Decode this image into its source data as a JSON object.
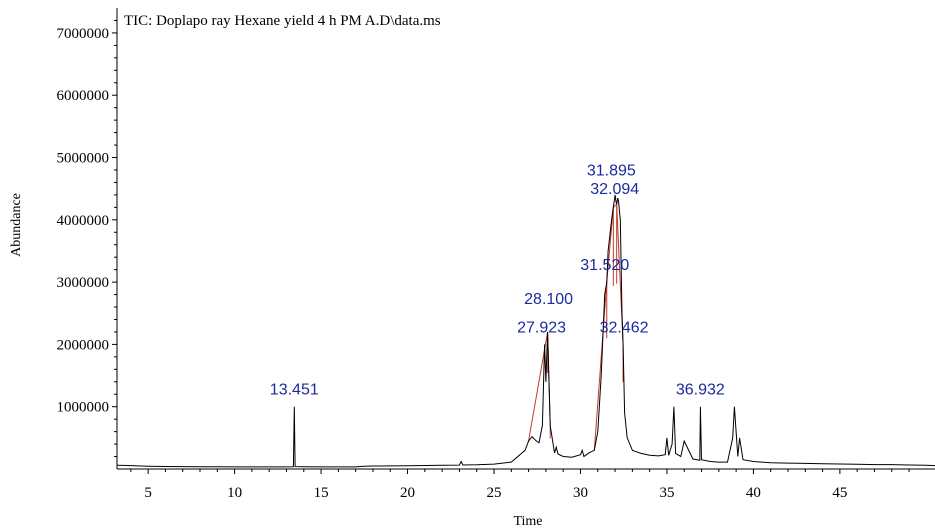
{
  "chart_data": {
    "type": "line",
    "title": "TIC: Doplapo ray Hexane yield 4 h PM A.D\\data.ms",
    "xlabel": "Time",
    "ylabel": "Abundance",
    "xlim": [
      3.2,
      50.5
    ],
    "ylim": [
      0,
      7400000
    ],
    "x_ticks": [
      5,
      10,
      15,
      20,
      25,
      30,
      35,
      40,
      45
    ],
    "x_tick_labels": [
      "5",
      "10",
      "15",
      "20",
      "25",
      "30",
      "35",
      "40",
      "45"
    ],
    "y_ticks": [
      1000000,
      2000000,
      3000000,
      4000000,
      5000000,
      6000000,
      7000000
    ],
    "y_tick_labels": [
      "1000000",
      "2000000",
      "3000000",
      "4000000",
      "5000000",
      "6000000",
      "7000000"
    ],
    "grid": false,
    "legend": "none",
    "line_color": "#000000",
    "label_color": "#1c2aa0",
    "integration_color": "#c0392b",
    "series": [
      {
        "x": [
          3.2,
          4.0,
          5.0,
          6.0,
          7.0,
          8.0,
          9.0,
          10.0,
          11.0,
          12.0,
          13.0,
          13.4,
          13.451,
          13.5,
          14.0,
          15.0,
          16.0,
          17.0,
          17.5,
          18.0,
          19.0,
          20.0,
          21.0,
          22.0,
          23.0,
          23.1,
          23.2,
          24.0,
          25.0,
          26.0,
          26.8,
          27.0,
          27.2,
          27.4,
          27.6,
          27.8,
          27.923,
          28.0,
          28.1,
          28.25,
          28.5,
          28.6,
          28.7,
          29.0,
          29.5,
          30.0,
          30.1,
          30.2,
          30.5,
          30.8,
          31.0,
          31.2,
          31.4,
          31.52,
          31.6,
          31.8,
          31.9,
          32.0,
          32.05,
          32.094,
          32.15,
          32.2,
          32.3,
          32.4,
          32.462,
          32.55,
          32.7,
          33.0,
          33.5,
          34.0,
          34.5,
          34.9,
          35.0,
          35.1,
          35.3,
          35.4,
          35.5,
          35.8,
          36.0,
          36.5,
          36.9,
          36.932,
          37.0,
          37.5,
          38.0,
          38.5,
          38.8,
          38.9,
          39.1,
          39.2,
          39.4,
          40.0,
          41.0,
          42.0,
          43.0,
          44.0,
          45.0,
          46.0,
          47.0,
          48.0,
          49.0,
          50.0,
          50.5
        ],
        "y": [
          60000,
          55000,
          45000,
          40000,
          38000,
          36000,
          35000,
          34000,
          33000,
          33000,
          34000,
          36000,
          1000000,
          38000,
          35000,
          34000,
          33000,
          33000,
          45000,
          48000,
          50000,
          52000,
          56000,
          60000,
          62000,
          120000,
          65000,
          68000,
          78000,
          110000,
          300000,
          450000,
          520000,
          460000,
          420000,
          700000,
          2000000,
          1400000,
          2200000,
          700000,
          260000,
          350000,
          240000,
          200000,
          190000,
          230000,
          300000,
          200000,
          260000,
          300000,
          600000,
          1500000,
          2800000,
          3000000,
          3500000,
          4000000,
          4200000,
          4400000,
          4300000,
          4250000,
          4350000,
          4300000,
          4000000,
          2500000,
          2000000,
          900000,
          500000,
          300000,
          250000,
          220000,
          210000,
          230000,
          500000,
          220000,
          400000,
          1000000,
          250000,
          200000,
          450000,
          160000,
          140000,
          1000000,
          150000,
          120000,
          110000,
          110000,
          500000,
          1000000,
          200000,
          500000,
          150000,
          120000,
          100000,
          95000,
          90000,
          85000,
          80000,
          75000,
          70000,
          70000,
          65000,
          60000,
          55000
        ]
      }
    ],
    "peak_labels": [
      {
        "text": "13.451",
        "x": 13.451,
        "y": 1000000
      },
      {
        "text": "27.923",
        "x": 27.923,
        "y": 2000000
      },
      {
        "text": "28.100",
        "x": 28.1,
        "y": 2200000
      },
      {
        "text": "31.520",
        "x": 31.52,
        "y": 3000000
      },
      {
        "text": "31.895",
        "x": 31.9,
        "y": 4200000
      },
      {
        "text": "32.094",
        "x": 32.094,
        "y": 4250000
      },
      {
        "text": "32.462",
        "x": 32.462,
        "y": 2000000
      },
      {
        "text": "36.932",
        "x": 36.932,
        "y": 1000000
      }
    ]
  }
}
